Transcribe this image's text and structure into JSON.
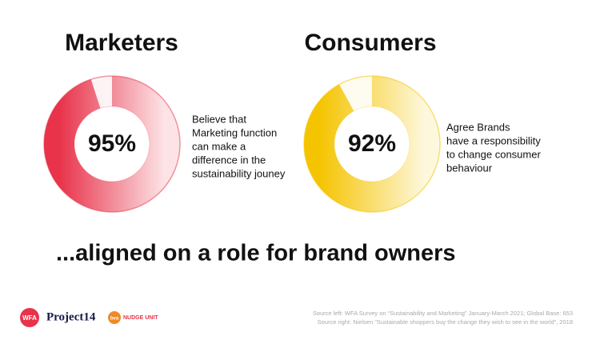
{
  "chart_data": [
    {
      "type": "donut",
      "title": "Marketers",
      "value": 95,
      "value_label": "95%",
      "color": "#e8334a",
      "description": [
        "Believe that",
        "Marketing function",
        "can make a",
        "difference in the",
        "sustainability jouney"
      ]
    },
    {
      "type": "donut",
      "title": "Consumers",
      "value": 92,
      "value_label": "92%",
      "color": "#f5c400",
      "description": [
        "Agree Brands",
        "have a responsibility",
        "to change consumer",
        "behaviour"
      ]
    }
  ],
  "headline": "...aligned on a role for brand owners",
  "logos": [
    "WFA",
    "Project14",
    "bva",
    "NUDGE UNIT"
  ],
  "sources": [
    "Source left: WFA Survey on “Sustainability and Marketing” January-March 2021; Global Base: 653",
    "Source right: Nielsen “Sustainable shoppers buy the change they wish to see in the world”, 2018"
  ]
}
